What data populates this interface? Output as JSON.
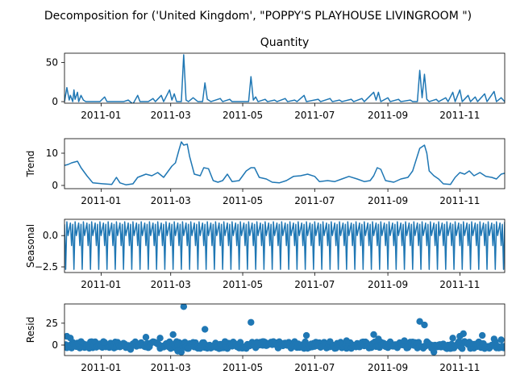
{
  "figure": {
    "title": "Decomposition for ('United Kingdom', \"POPPY'S PLAYHOUSE LIVINGROOM \")"
  },
  "colors": {
    "series": "#1f77b4",
    "axes": "#000000",
    "background": "#ffffff"
  },
  "chart_data": [
    {
      "type": "line",
      "title": "Quantity",
      "ylabel": "",
      "ylim": [
        -2,
        62
      ],
      "yticks": [
        0,
        50
      ],
      "xlim": [
        "2010-12-01",
        "2011-12-09"
      ],
      "xticks": [
        "2011-01",
        "2011-03",
        "2011-05",
        "2011-07",
        "2011-09",
        "2011-11"
      ],
      "grid": false,
      "series": [
        {
          "points": [
            [
              "2010-12-01",
              0
            ],
            [
              "2010-12-03",
              18
            ],
            [
              "2010-12-05",
              2
            ],
            [
              "2010-12-06",
              8
            ],
            [
              "2010-12-08",
              0
            ],
            [
              "2010-12-09",
              15
            ],
            [
              "2010-12-10",
              3
            ],
            [
              "2010-12-12",
              12
            ],
            [
              "2010-12-13",
              0
            ],
            [
              "2010-12-15",
              8
            ],
            [
              "2010-12-17",
              2
            ],
            [
              "2010-12-19",
              0
            ],
            [
              "2010-12-31",
              0
            ],
            [
              "2011-01-04",
              6
            ],
            [
              "2011-01-06",
              0
            ],
            [
              "2011-01-20",
              0
            ],
            [
              "2011-01-24",
              2
            ],
            [
              "2011-01-28",
              -3
            ],
            [
              "2011-02-01",
              8
            ],
            [
              "2011-02-03",
              0
            ],
            [
              "2011-02-10",
              0
            ],
            [
              "2011-02-14",
              4
            ],
            [
              "2011-02-16",
              0
            ],
            [
              "2011-02-21",
              8
            ],
            [
              "2011-02-23",
              0
            ],
            [
              "2011-02-28",
              15
            ],
            [
              "2011-03-02",
              2
            ],
            [
              "2011-03-04",
              10
            ],
            [
              "2011-03-06",
              0
            ],
            [
              "2011-03-10",
              0
            ],
            [
              "2011-03-12",
              60
            ],
            [
              "2011-03-14",
              2
            ],
            [
              "2011-03-16",
              0
            ],
            [
              "2011-03-20",
              5
            ],
            [
              "2011-03-24",
              0
            ],
            [
              "2011-03-28",
              0
            ],
            [
              "2011-03-30",
              24
            ],
            [
              "2011-04-01",
              3
            ],
            [
              "2011-04-04",
              0
            ],
            [
              "2011-04-12",
              4
            ],
            [
              "2011-04-14",
              0
            ],
            [
              "2011-04-20",
              3
            ],
            [
              "2011-04-22",
              0
            ],
            [
              "2011-05-06",
              0
            ],
            [
              "2011-05-08",
              32
            ],
            [
              "2011-05-10",
              2
            ],
            [
              "2011-05-12",
              6
            ],
            [
              "2011-05-14",
              0
            ],
            [
              "2011-05-20",
              3
            ],
            [
              "2011-05-22",
              0
            ],
            [
              "2011-05-28",
              2
            ],
            [
              "2011-05-30",
              0
            ],
            [
              "2011-06-06",
              4
            ],
            [
              "2011-06-08",
              0
            ],
            [
              "2011-06-14",
              2
            ],
            [
              "2011-06-16",
              0
            ],
            [
              "2011-06-22",
              8
            ],
            [
              "2011-06-24",
              0
            ],
            [
              "2011-07-04",
              3
            ],
            [
              "2011-07-06",
              0
            ],
            [
              "2011-07-14",
              4
            ],
            [
              "2011-07-16",
              0
            ],
            [
              "2011-07-22",
              2
            ],
            [
              "2011-07-24",
              0
            ],
            [
              "2011-08-01",
              3
            ],
            [
              "2011-08-03",
              0
            ],
            [
              "2011-08-10",
              4
            ],
            [
              "2011-08-12",
              0
            ],
            [
              "2011-08-20",
              12
            ],
            [
              "2011-08-22",
              2
            ],
            [
              "2011-08-24",
              12
            ],
            [
              "2011-08-26",
              0
            ],
            [
              "2011-09-01",
              5
            ],
            [
              "2011-09-03",
              0
            ],
            [
              "2011-09-10",
              3
            ],
            [
              "2011-09-12",
              0
            ],
            [
              "2011-09-20",
              2
            ],
            [
              "2011-09-22",
              0
            ],
            [
              "2011-09-26",
              0
            ],
            [
              "2011-09-28",
              40
            ],
            [
              "2011-09-30",
              5
            ],
            [
              "2011-10-02",
              35
            ],
            [
              "2011-10-04",
              3
            ],
            [
              "2011-10-06",
              0
            ],
            [
              "2011-10-12",
              3
            ],
            [
              "2011-10-14",
              0
            ],
            [
              "2011-10-20",
              5
            ],
            [
              "2011-10-22",
              0
            ],
            [
              "2011-10-26",
              12
            ],
            [
              "2011-10-28",
              0
            ],
            [
              "2011-11-01",
              15
            ],
            [
              "2011-11-03",
              0
            ],
            [
              "2011-11-08",
              8
            ],
            [
              "2011-11-10",
              0
            ],
            [
              "2011-11-14",
              6
            ],
            [
              "2011-11-16",
              0
            ],
            [
              "2011-11-22",
              10
            ],
            [
              "2011-11-24",
              0
            ],
            [
              "2011-11-30",
              13
            ],
            [
              "2011-12-02",
              0
            ],
            [
              "2011-12-06",
              5
            ],
            [
              "2011-12-09",
              0
            ]
          ]
        }
      ]
    },
    {
      "type": "line",
      "title": "",
      "ylabel": "Trend",
      "ylim": [
        -1,
        14.5
      ],
      "yticks": [
        0,
        10
      ],
      "xlim": [
        "2010-12-01",
        "2011-12-09"
      ],
      "xticks": [
        "2011-01",
        "2011-03",
        "2011-05",
        "2011-07",
        "2011-09",
        "2011-11"
      ],
      "grid": false,
      "series": [
        {
          "points": [
            [
              "2010-12-01",
              6.2
            ],
            [
              "2010-12-04",
              6.5
            ],
            [
              "2010-12-07",
              7.0
            ],
            [
              "2010-12-12",
              7.5
            ],
            [
              "2010-12-15",
              5.5
            ],
            [
              "2010-12-20",
              3.0
            ],
            [
              "2010-12-25",
              0.8
            ],
            [
              "2011-01-03",
              0.5
            ],
            [
              "2011-01-10",
              0.3
            ],
            [
              "2011-01-14",
              2.5
            ],
            [
              "2011-01-17",
              0.8
            ],
            [
              "2011-01-22",
              0.2
            ],
            [
              "2011-01-28",
              0.5
            ],
            [
              "2011-02-01",
              2.5
            ],
            [
              "2011-02-08",
              3.5
            ],
            [
              "2011-02-13",
              3.0
            ],
            [
              "2011-02-18",
              4.0
            ],
            [
              "2011-02-23",
              2.5
            ],
            [
              "2011-02-27",
              4.5
            ],
            [
              "2011-03-02",
              6.0
            ],
            [
              "2011-03-05",
              7.0
            ],
            [
              "2011-03-08",
              11.0
            ],
            [
              "2011-03-10",
              13.5
            ],
            [
              "2011-03-12",
              12.5
            ],
            [
              "2011-03-15",
              12.8
            ],
            [
              "2011-03-17",
              9.0
            ],
            [
              "2011-03-21",
              3.5
            ],
            [
              "2011-03-26",
              3.0
            ],
            [
              "2011-03-29",
              5.5
            ],
            [
              "2011-04-02",
              5.2
            ],
            [
              "2011-04-06",
              1.5
            ],
            [
              "2011-04-10",
              1.0
            ],
            [
              "2011-04-14",
              1.5
            ],
            [
              "2011-04-18",
              3.5
            ],
            [
              "2011-04-22",
              1.2
            ],
            [
              "2011-04-28",
              1.5
            ],
            [
              "2011-05-04",
              4.5
            ],
            [
              "2011-05-08",
              5.5
            ],
            [
              "2011-05-11",
              5.5
            ],
            [
              "2011-05-15",
              2.5
            ],
            [
              "2011-05-21",
              2.0
            ],
            [
              "2011-05-26",
              1.0
            ],
            [
              "2011-06-01",
              0.8
            ],
            [
              "2011-06-07",
              1.5
            ],
            [
              "2011-06-13",
              2.8
            ],
            [
              "2011-06-19",
              3.0
            ],
            [
              "2011-06-25",
              3.5
            ],
            [
              "2011-07-01",
              2.8
            ],
            [
              "2011-07-05",
              1.2
            ],
            [
              "2011-07-12",
              1.5
            ],
            [
              "2011-07-18",
              1.2
            ],
            [
              "2011-07-24",
              2.0
            ],
            [
              "2011-07-30",
              2.8
            ],
            [
              "2011-08-06",
              2.0
            ],
            [
              "2011-08-12",
              1.2
            ],
            [
              "2011-08-17",
              1.5
            ],
            [
              "2011-08-20",
              3.0
            ],
            [
              "2011-08-23",
              5.5
            ],
            [
              "2011-08-26",
              5.0
            ],
            [
              "2011-08-30",
              1.5
            ],
            [
              "2011-09-06",
              1.0
            ],
            [
              "2011-09-12",
              2.0
            ],
            [
              "2011-09-18",
              2.5
            ],
            [
              "2011-09-22",
              4.5
            ],
            [
              "2011-09-25",
              8.0
            ],
            [
              "2011-09-28",
              11.5
            ],
            [
              "2011-09-30",
              12.0
            ],
            [
              "2011-10-02",
              12.5
            ],
            [
              "2011-10-04",
              10.0
            ],
            [
              "2011-10-06",
              4.5
            ],
            [
              "2011-10-10",
              3.0
            ],
            [
              "2011-10-14",
              2.0
            ],
            [
              "2011-10-18",
              0.5
            ],
            [
              "2011-10-24",
              0.3
            ],
            [
              "2011-10-28",
              2.5
            ],
            [
              "2011-11-01",
              4.0
            ],
            [
              "2011-11-05",
              3.5
            ],
            [
              "2011-11-09",
              4.5
            ],
            [
              "2011-11-13",
              3.0
            ],
            [
              "2011-11-18",
              4.0
            ],
            [
              "2011-11-23",
              2.8
            ],
            [
              "2011-11-28",
              2.5
            ],
            [
              "2011-12-02",
              2.0
            ],
            [
              "2011-12-06",
              3.5
            ],
            [
              "2011-12-09",
              3.8
            ]
          ]
        }
      ]
    },
    {
      "type": "line",
      "title": "",
      "ylabel": "Seasonal",
      "ylim": [
        -2.95,
        1.3
      ],
      "yticks": [
        0.0,
        -2.5
      ],
      "ytick_labels": [
        "0.0",
        "−2.5"
      ],
      "xlim": [
        "2010-12-01",
        "2011-12-09"
      ],
      "xticks": [
        "2011-01",
        "2011-03",
        "2011-05",
        "2011-07",
        "2011-09",
        "2011-11"
      ],
      "grid": false,
      "period_days": 7,
      "weekly_pattern": [
        0.9,
        -2.7,
        1.1,
        0.0,
        0.5,
        1.0,
        -0.8
      ],
      "series": [
        {
          "points": []
        }
      ]
    },
    {
      "type": "scatter",
      "title": "",
      "ylabel": "Resid",
      "ylim": [
        -12,
        47
      ],
      "yticks": [
        0,
        25
      ],
      "xlim": [
        "2010-12-01",
        "2011-12-09"
      ],
      "xticks": [
        "2011-01",
        "2011-03",
        "2011-05",
        "2011-07",
        "2011-09",
        "2011-11"
      ],
      "grid": false,
      "series": [
        {
          "points": [
            [
              "2010-12-03",
              10
            ],
            [
              "2010-12-06",
              8
            ],
            [
              "2010-12-15",
              4
            ],
            [
              "2011-01-04",
              3
            ],
            [
              "2011-01-26",
              -5
            ],
            [
              "2011-02-08",
              9
            ],
            [
              "2011-02-20",
              8
            ],
            [
              "2011-03-03",
              12
            ],
            [
              "2011-03-07",
              -7
            ],
            [
              "2011-03-10",
              -8
            ],
            [
              "2011-03-12",
              44
            ],
            [
              "2011-03-16",
              -4
            ],
            [
              "2011-03-30",
              18
            ],
            [
              "2011-04-16",
              4
            ],
            [
              "2011-05-08",
              26
            ],
            [
              "2011-05-18",
              4
            ],
            [
              "2011-06-24",
              11
            ],
            [
              "2011-07-14",
              4
            ],
            [
              "2011-07-28",
              5
            ],
            [
              "2011-08-20",
              12
            ],
            [
              "2011-08-24",
              7
            ],
            [
              "2011-09-15",
              5
            ],
            [
              "2011-09-28",
              27
            ],
            [
              "2011-10-02",
              23
            ],
            [
              "2011-10-10",
              -8
            ],
            [
              "2011-10-26",
              8
            ],
            [
              "2011-11-01",
              10
            ],
            [
              "2011-11-04",
              13
            ],
            [
              "2011-11-20",
              11
            ],
            [
              "2011-11-30",
              7
            ],
            [
              "2011-12-06",
              6
            ]
          ],
          "baseline_range": [
            -4.5,
            4.5
          ]
        }
      ]
    }
  ]
}
